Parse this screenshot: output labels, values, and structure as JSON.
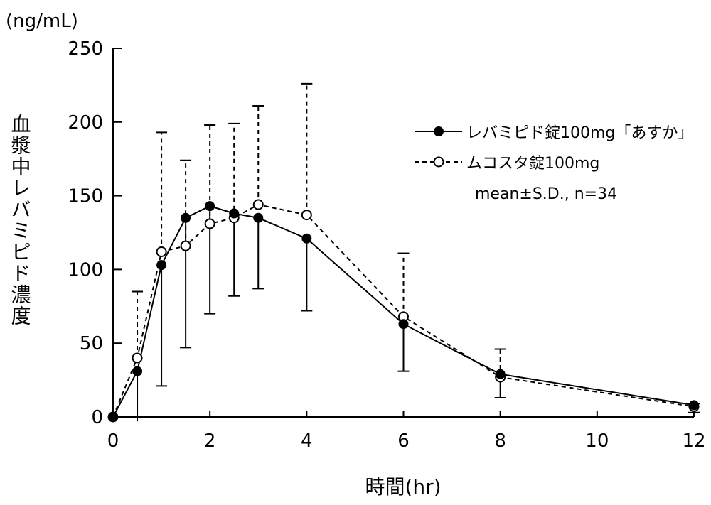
{
  "chart_data": {
    "type": "line",
    "unit_label": "(ng/mL)",
    "ylabel": "血漿中レバミピド濃度",
    "xlabel": "時間(hr)",
    "xlim": [
      0,
      12
    ],
    "ylim": [
      0,
      250
    ],
    "xticks": [
      0,
      2,
      4,
      6,
      8,
      10,
      12
    ],
    "yticks": [
      0,
      50,
      100,
      150,
      200,
      250
    ],
    "x": [
      0,
      0.5,
      1,
      1.5,
      2,
      2.5,
      3,
      4,
      6,
      8,
      12
    ],
    "series": [
      {
        "name": "レバミピド錠100mg「あすか」",
        "marker": "filled-circle",
        "line": "solid",
        "error_direction": "down",
        "values": [
          0,
          31,
          103,
          135,
          143,
          138,
          135,
          121,
          63,
          29,
          8
        ],
        "sd": [
          0,
          34,
          82,
          88,
          73,
          56,
          48,
          49,
          32,
          16,
          5
        ]
      },
      {
        "name": "ムコスタ錠100mg",
        "marker": "open-circle",
        "line": "dashed",
        "error_direction": "up",
        "values": [
          0,
          40,
          112,
          116,
          131,
          135,
          144,
          137,
          68,
          27,
          7
        ],
        "sd": [
          0,
          45,
          81,
          58,
          67,
          64,
          67,
          89,
          43,
          19,
          2
        ]
      }
    ],
    "annotation": "mean±S.D., n=34",
    "legend_position": "top-right",
    "grid": false
  }
}
